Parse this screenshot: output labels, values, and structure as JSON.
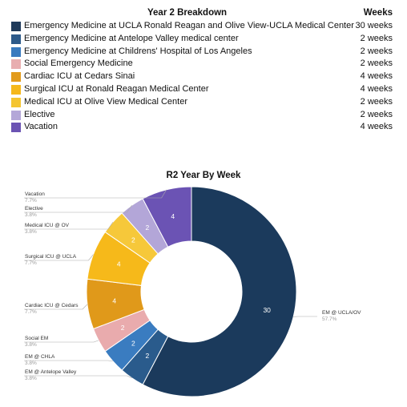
{
  "table": {
    "title": "Year 2 Breakdown",
    "weeks_header": "Weeks",
    "rows": [
      {
        "label": "Emergency Medicine at UCLA Ronald Reagan and Olive View-UCLA Medical Center",
        "weeks": "30 weeks",
        "color": "#1f3a5a"
      },
      {
        "label": "Emergency Medicine at Antelope Valley medical center",
        "weeks": "2 weeks",
        "color": "#2d5a8a"
      },
      {
        "label": "Emergency Medicine at Childrens' Hospital of Los Angeles",
        "weeks": "2 weeks",
        "color": "#3a7bbf"
      },
      {
        "label": "Social Emergency Medicine",
        "weeks": "2 weeks",
        "color": "#e8aeb0"
      },
      {
        "label": "Cardiac ICU at Cedars Sinai",
        "weeks": "4 weeks",
        "color": "#e29b1c"
      },
      {
        "label": "Surgical ICU at Ronald Reagan Medical Center",
        "weeks": "4 weeks",
        "color": "#f5b81c"
      },
      {
        "label": "Medical ICU at Olive View Medical Center",
        "weeks": "2 weeks",
        "color": "#f4c531"
      },
      {
        "label": "Elective",
        "weeks": "2 weeks",
        "color": "#b4a7d8"
      },
      {
        "label": "Vacation",
        "weeks": "4 weeks",
        "color": "#6b53b3"
      }
    ]
  },
  "chart_data": {
    "type": "pie",
    "title": "R2 Year By Week",
    "categories": [
      "EM @ UCLA/OV",
      "EM @ Antelope Valley",
      "EM @ CHLA",
      "Social EM",
      "Cardiac ICU @ Cedars",
      "Surgical ICU @ UCLA",
      "Medical ICU @ OV",
      "Elective",
      "Vacation"
    ],
    "values": [
      30,
      2,
      2,
      2,
      4,
      4,
      2,
      2,
      4
    ],
    "percent_labels": [
      "57.7%",
      "3.8%",
      "3.8%",
      "3.8%",
      "7.7%",
      "7.7%",
      "3.8%",
      "3.8%",
      "7.7%"
    ],
    "colors": [
      "#1b3a5c",
      "#2a5b8c",
      "#3a7cc0",
      "#e9abad",
      "#e0991a",
      "#f6b91a",
      "#f6c83a",
      "#b3a6d8",
      "#6b53b4"
    ],
    "donut": true
  }
}
